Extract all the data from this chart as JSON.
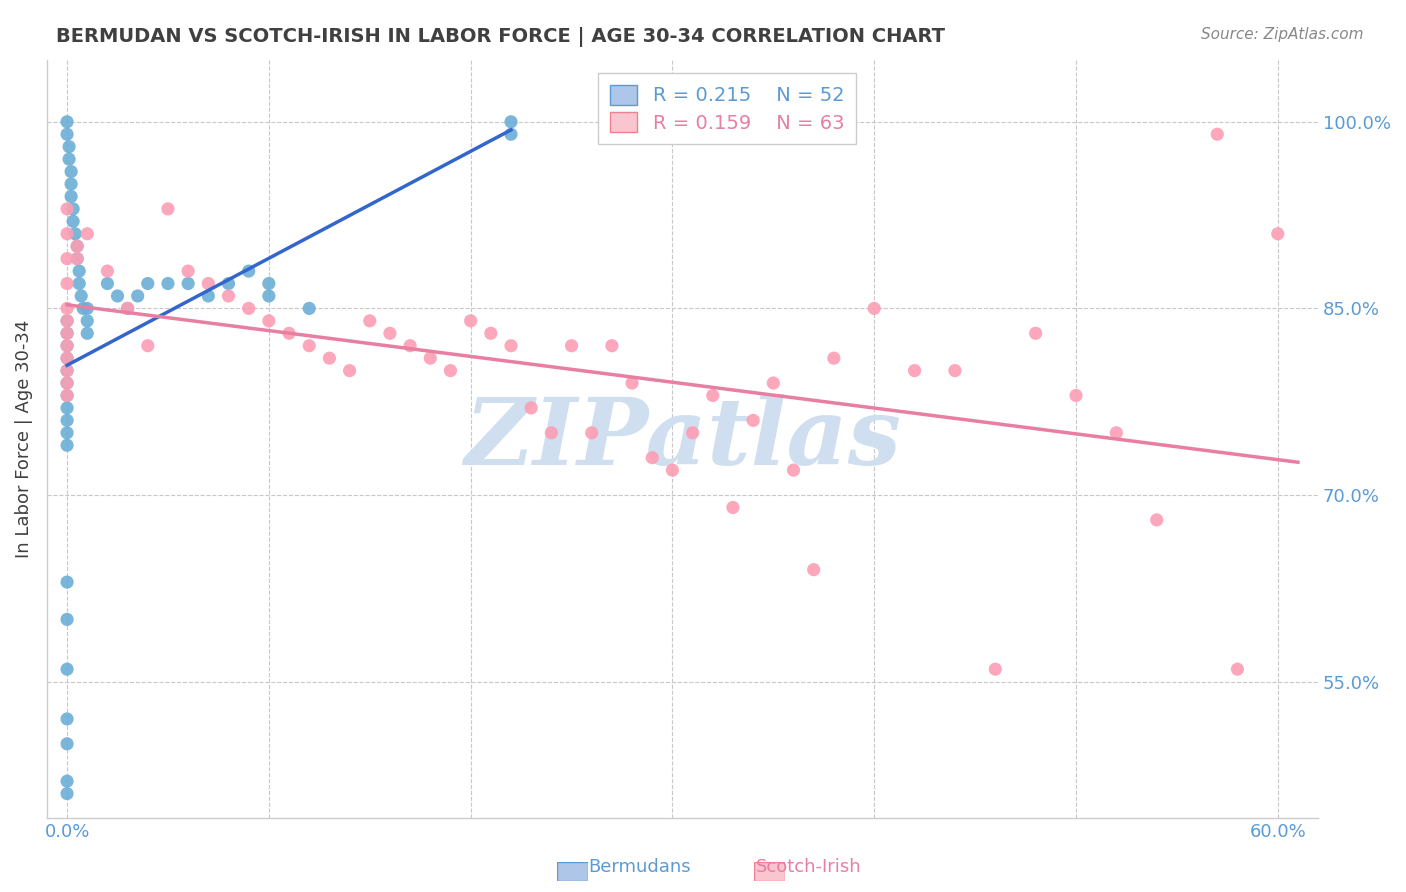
{
  "title": "BERMUDAN VS SCOTCH-IRISH IN LABOR FORCE | AGE 30-34 CORRELATION CHART",
  "source_text": "Source: ZipAtlas.com",
  "ylabel": "In Labor Force | Age 30-34",
  "xlim": [
    -0.01,
    0.62
  ],
  "ylim": [
    0.44,
    1.05
  ],
  "xticks": [
    0.0,
    0.1,
    0.2,
    0.3,
    0.4,
    0.5,
    0.6
  ],
  "xtick_labels": [
    "0.0%",
    "",
    "",
    "",
    "",
    "",
    "60.0%"
  ],
  "yticks": [
    0.55,
    0.7,
    0.85,
    1.0
  ],
  "ytick_labels": [
    "55.0%",
    "70.0%",
    "85.0%",
    "100.0%"
  ],
  "legend_r1": "R = 0.215",
  "legend_n1": "N = 52",
  "legend_r2": "R = 0.159",
  "legend_n2": "N = 63",
  "bermudans_color": "#6baed6",
  "scotch_irish_color": "#fc9eb4",
  "line_blue": "#3366cc",
  "line_pink": "#e87ea1",
  "background_color": "#ffffff",
  "watermark_text": "ZIPatlas",
  "watermark_color": "#d0dff0",
  "berm_x": [
    0.0,
    0.0,
    0.001,
    0.001,
    0.002,
    0.002,
    0.002,
    0.003,
    0.003,
    0.004,
    0.005,
    0.005,
    0.006,
    0.006,
    0.007,
    0.008,
    0.01,
    0.01,
    0.01,
    0.02,
    0.025,
    0.03,
    0.035,
    0.04,
    0.05,
    0.06,
    0.07,
    0.08,
    0.09,
    0.1,
    0.1,
    0.12,
    0.0,
    0.0,
    0.0,
    0.0,
    0.0,
    0.0,
    0.0,
    0.0,
    0.0,
    0.0,
    0.0,
    0.0,
    0.0,
    0.0,
    0.0,
    0.0,
    0.0,
    0.0,
    0.22,
    0.22
  ],
  "berm_y": [
    1.0,
    0.99,
    0.98,
    0.97,
    0.96,
    0.95,
    0.94,
    0.93,
    0.92,
    0.91,
    0.9,
    0.89,
    0.88,
    0.87,
    0.86,
    0.85,
    0.85,
    0.84,
    0.83,
    0.87,
    0.86,
    0.85,
    0.86,
    0.87,
    0.87,
    0.87,
    0.86,
    0.87,
    0.88,
    0.87,
    0.86,
    0.85,
    0.84,
    0.83,
    0.82,
    0.81,
    0.8,
    0.79,
    0.78,
    0.77,
    0.76,
    0.75,
    0.74,
    0.63,
    0.6,
    0.56,
    0.52,
    0.5,
    0.47,
    0.46,
    0.99,
    1.0
  ],
  "si_x": [
    0.0,
    0.0,
    0.0,
    0.0,
    0.0,
    0.0,
    0.0,
    0.0,
    0.0,
    0.0,
    0.0,
    0.0,
    0.005,
    0.005,
    0.01,
    0.02,
    0.03,
    0.04,
    0.05,
    0.06,
    0.07,
    0.08,
    0.09,
    0.1,
    0.11,
    0.12,
    0.13,
    0.14,
    0.15,
    0.16,
    0.17,
    0.18,
    0.19,
    0.2,
    0.21,
    0.22,
    0.23,
    0.24,
    0.25,
    0.26,
    0.27,
    0.28,
    0.29,
    0.3,
    0.31,
    0.32,
    0.33,
    0.34,
    0.35,
    0.36,
    0.37,
    0.38,
    0.4,
    0.42,
    0.44,
    0.46,
    0.48,
    0.5,
    0.52,
    0.54,
    0.57,
    0.58,
    0.6
  ],
  "si_y": [
    0.93,
    0.91,
    0.89,
    0.87,
    0.85,
    0.84,
    0.83,
    0.82,
    0.81,
    0.8,
    0.79,
    0.78,
    0.9,
    0.89,
    0.91,
    0.88,
    0.85,
    0.82,
    0.93,
    0.88,
    0.87,
    0.86,
    0.85,
    0.84,
    0.83,
    0.82,
    0.81,
    0.8,
    0.84,
    0.83,
    0.82,
    0.81,
    0.8,
    0.84,
    0.83,
    0.82,
    0.77,
    0.75,
    0.82,
    0.75,
    0.82,
    0.79,
    0.73,
    0.72,
    0.75,
    0.78,
    0.69,
    0.76,
    0.79,
    0.72,
    0.64,
    0.81,
    0.85,
    0.8,
    0.8,
    0.56,
    0.83,
    0.78,
    0.75,
    0.68,
    0.99,
    0.56,
    0.91
  ]
}
